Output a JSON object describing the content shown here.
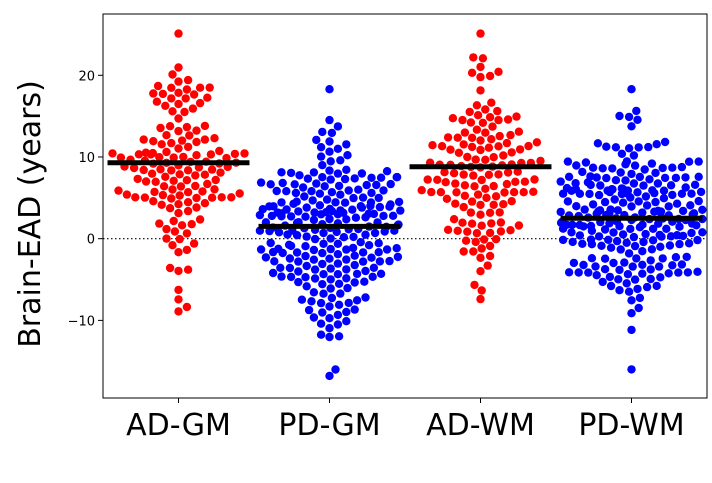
{
  "chart_data": {
    "type": "scatter",
    "subtype": "swarm",
    "title": "",
    "xlabel": "",
    "ylabel": "Brain-EAD (years)",
    "ylim": [
      -19.5,
      27.5
    ],
    "yticks": [
      -10,
      0,
      10,
      20
    ],
    "ytick_labels": [
      "−10",
      "0",
      "10",
      "20"
    ],
    "reference_line": {
      "y": 0,
      "style": "dotted"
    },
    "grid": false,
    "legend": "none",
    "categories": [
      "AD-GM",
      "PD-GM",
      "AD-WM",
      "PD-WM"
    ],
    "series": [
      {
        "category": "AD-GM",
        "color": "#ff0000",
        "mean": 9.3,
        "count": 140,
        "min": -8.9,
        "max": 25.1,
        "q1": 5.3,
        "median": 9.0,
        "q3": 13.5
      },
      {
        "category": "PD-GM",
        "color": "#0000ff",
        "mean": 1.5,
        "count": 240,
        "min": -16.8,
        "max": 18.3,
        "q1": -2.2,
        "median": 1.5,
        "q3": 5.3
      },
      {
        "category": "AD-WM",
        "color": "#ff0000",
        "mean": 8.8,
        "count": 140,
        "min": -7.4,
        "max": 25.1,
        "q1": 4.8,
        "median": 8.6,
        "q3": 13.0
      },
      {
        "category": "PD-WM",
        "color": "#0000ff",
        "mean": 2.5,
        "count": 240,
        "min": -16.0,
        "max": 18.3,
        "q1": -1.2,
        "median": 2.5,
        "q3": 6.0
      }
    ]
  }
}
